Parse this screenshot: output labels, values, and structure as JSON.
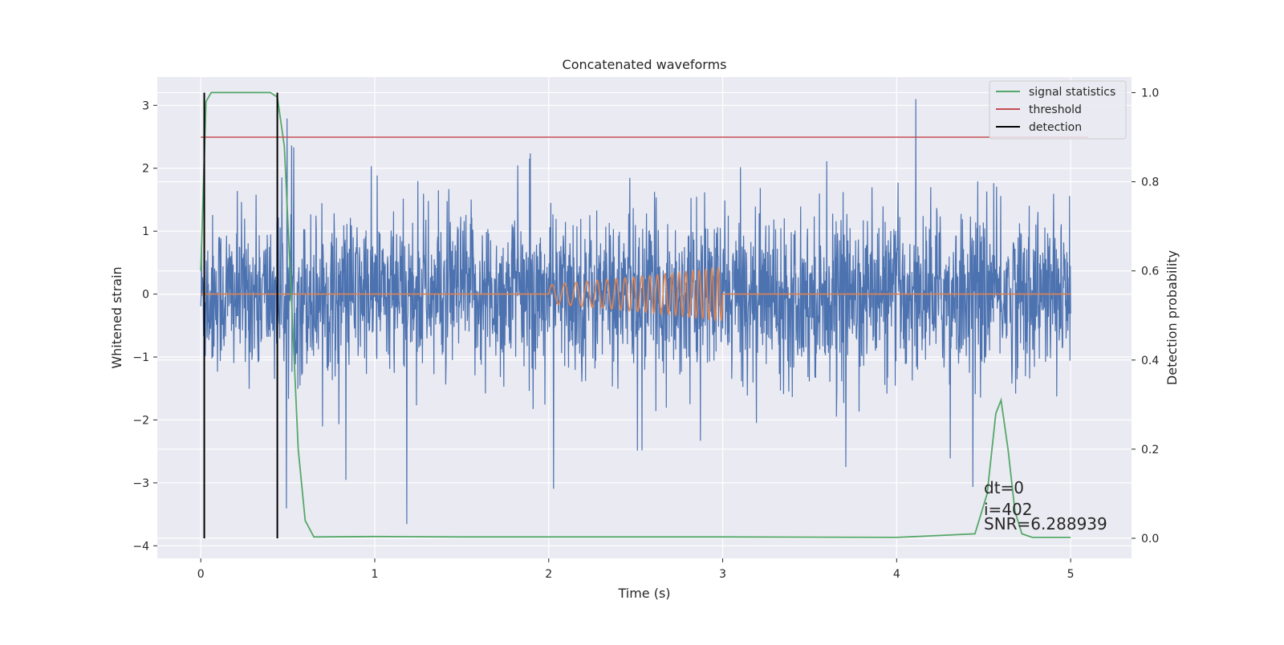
{
  "chart_data": {
    "type": "line",
    "title": "Concatenated waveforms",
    "xlabel": "Time (s)",
    "ylabel_left": "Whitened strain",
    "ylabel_right": "Detection probability",
    "xlim": [
      -0.25,
      5.35
    ],
    "ylim_left": [
      -4.2,
      3.45
    ],
    "ylim_right": [
      -0.045,
      1.035
    ],
    "x_ticks": [
      0,
      1,
      2,
      3,
      4,
      5
    ],
    "x_tick_labels": [
      "0",
      "1",
      "2",
      "3",
      "4",
      "5"
    ],
    "y_left_ticks": [
      -4,
      -3,
      -2,
      -1,
      0,
      1,
      2,
      3
    ],
    "y_left_tick_labels": [
      "−4",
      "−3",
      "−2",
      "−1",
      "0",
      "1",
      "2",
      "3"
    ],
    "y_right_ticks": [
      0.0,
      0.2,
      0.4,
      0.6,
      0.8,
      1.0
    ],
    "y_right_tick_labels": [
      "0.0",
      "0.2",
      "0.4",
      "0.6",
      "0.8",
      "1.0"
    ],
    "grid": true,
    "legend_position": "top-right",
    "colors": {
      "background": "#eaeaf2",
      "grid": "#ffffff",
      "strain": "#4c72b0",
      "injected": "#dd8452",
      "statistics": "#55a868",
      "threshold": "#c44e52",
      "detection": "#000000"
    },
    "series": [
      {
        "name": "whitened strain (noise)",
        "axis": "left",
        "x_start": 0,
        "x_end": 5,
        "typical_envelope": 1.5,
        "peak_range": [
          -3.8,
          3.1
        ]
      },
      {
        "name": "injected waveform",
        "axis": "left",
        "x": [
          0,
          2.0,
          2.0,
          2.2,
          2.4,
          2.6,
          2.8,
          2.98,
          3.0,
          3.0,
          5.0
        ],
        "envelope": [
          0,
          0,
          0.15,
          0.2,
          0.25,
          0.3,
          0.36,
          0.42,
          0.42,
          0,
          0
        ],
        "note_chirp": "oscillation frequency increasing from about 2 s to 3 s"
      },
      {
        "name": "signal statistics",
        "axis": "right",
        "x": [
          0,
          0.03,
          0.06,
          0.2,
          0.4,
          0.44,
          0.48,
          0.52,
          0.56,
          0.6,
          0.65,
          1.0,
          1.5,
          2.0,
          3.0,
          4.0,
          4.45,
          4.52,
          4.57,
          4.6,
          4.64,
          4.68,
          4.72,
          4.78,
          5.0
        ],
        "y": [
          0.6,
          0.98,
          1.0,
          1.0,
          1.0,
          0.99,
          0.88,
          0.55,
          0.2,
          0.04,
          0.003,
          0.004,
          0.003,
          0.003,
          0.003,
          0.002,
          0.01,
          0.1,
          0.28,
          0.31,
          0.2,
          0.06,
          0.01,
          0.002,
          0.002
        ]
      },
      {
        "name": "threshold",
        "axis": "right",
        "x": [
          0,
          5.1
        ],
        "y": [
          0.9,
          0.9
        ]
      },
      {
        "name": "detection",
        "axis": "right",
        "x_positions": [
          0.02,
          0.44
        ],
        "y_range": [
          0.0,
          1.0
        ]
      }
    ],
    "annotations": [
      "dt=0",
      "i=402",
      "SNR=6.288939"
    ]
  },
  "legend": {
    "items": [
      {
        "label": "signal statistics",
        "color": "#55a868"
      },
      {
        "label": "threshold",
        "color": "#c44e52"
      },
      {
        "label": "detection",
        "color": "#000000"
      }
    ]
  }
}
